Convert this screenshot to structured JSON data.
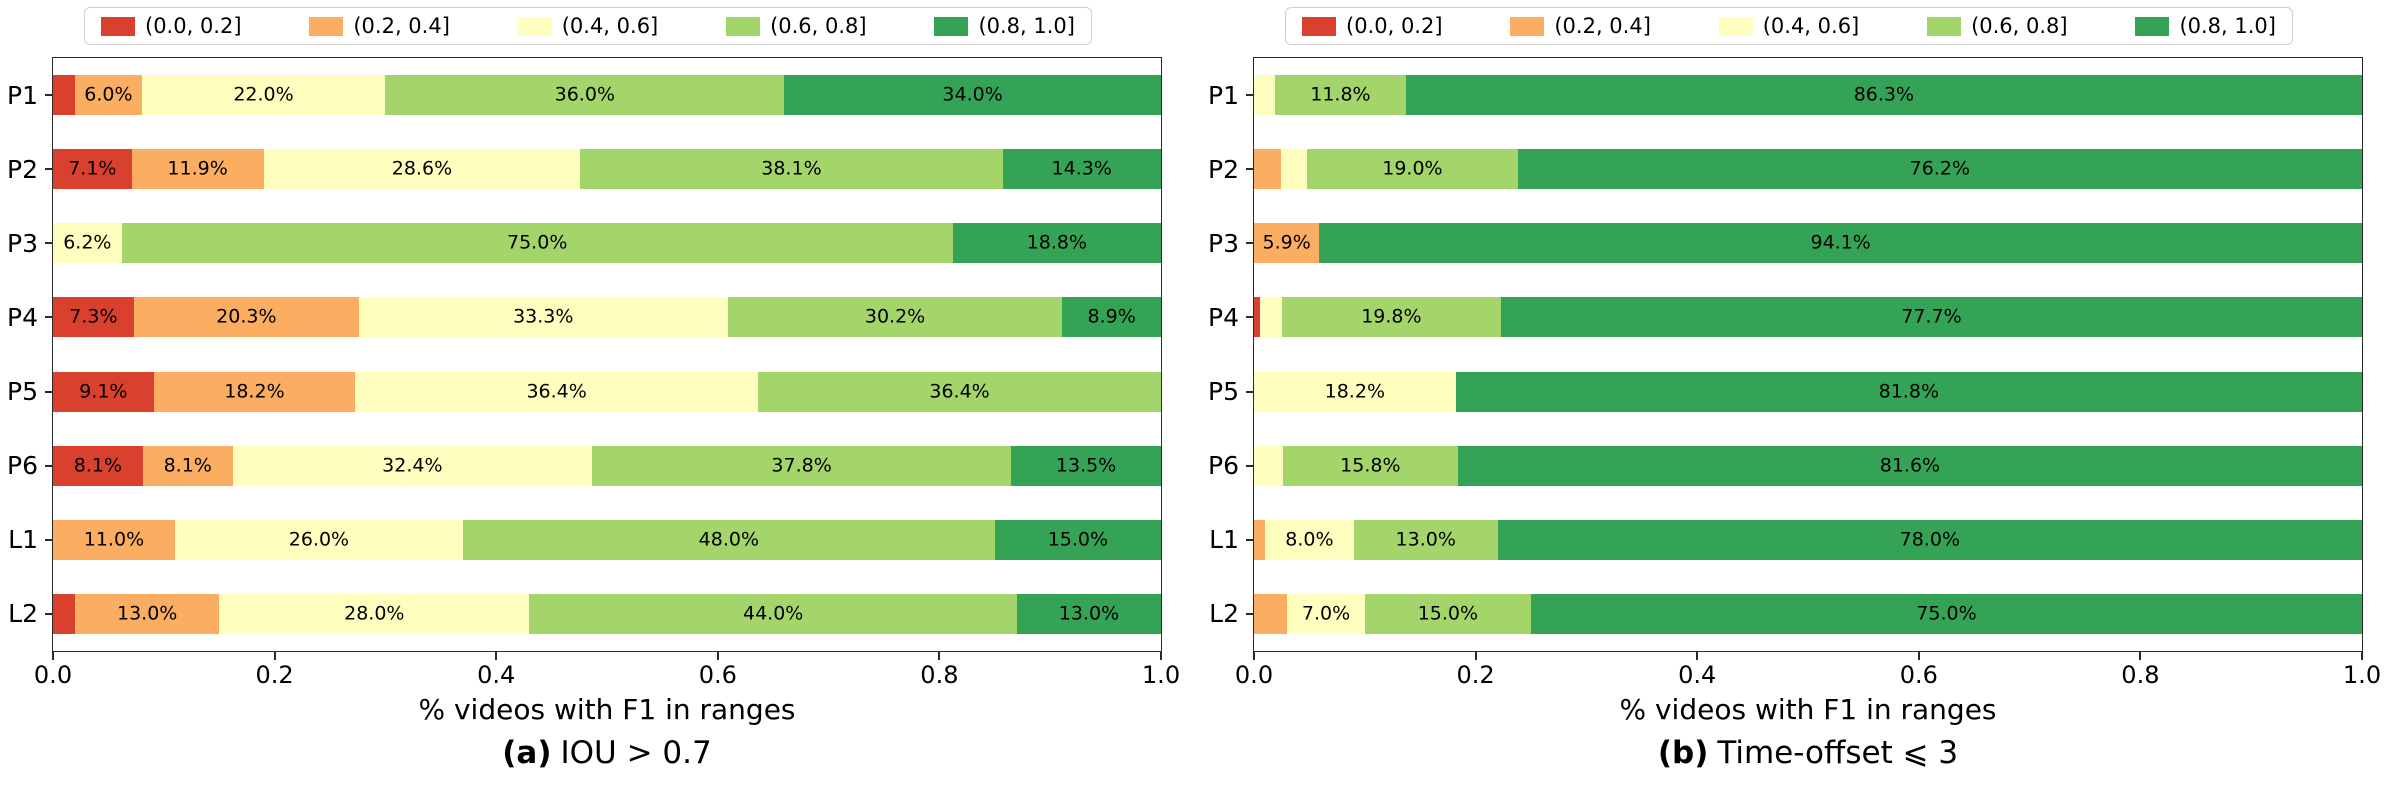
{
  "palette": {
    "range_0_02": "#d9402e",
    "range_02_04": "#fbad62",
    "range_04_06": "#feffbe",
    "range_06_08": "#a4d56a",
    "range_08_10": "#35a355",
    "spine": "#2a2a2a",
    "legend_border": "#cfcfcf",
    "text": "#000000"
  },
  "legend": {
    "entries": [
      {
        "label": "(0.0, 0.2]",
        "color": "#d9402e"
      },
      {
        "label": "(0.2, 0.4]",
        "color": "#fbad62"
      },
      {
        "label": "(0.4, 0.6]",
        "color": "#feffbe"
      },
      {
        "label": "(0.6, 0.8]",
        "color": "#a4d56a"
      },
      {
        "label": "(0.8, 1.0]",
        "color": "#35a355"
      }
    ]
  },
  "chart_data": [
    {
      "type": "bar",
      "stacked": true,
      "orientation": "horizontal",
      "caption_bold": "(a)",
      "caption_text": "IOU > 0.7",
      "xlabel": "% videos with F1 in ranges",
      "xlim": [
        0.0,
        1.0
      ],
      "xtick_labels": [
        "0.0",
        "0.2",
        "0.4",
        "0.6",
        "0.8",
        "1.0"
      ],
      "label_min_percent": 5.0,
      "grid": false,
      "legend_position": "top",
      "categories": [
        "P1",
        "P2",
        "P3",
        "P4",
        "P5",
        "P6",
        "L1",
        "L2"
      ],
      "series": [
        {
          "name": "(0.0, 0.2]",
          "color": "#d9402e",
          "values": [
            2.0,
            7.1,
            0,
            7.3,
            9.1,
            8.1,
            0,
            2.0
          ]
        },
        {
          "name": "(0.2, 0.4]",
          "color": "#fbad62",
          "values": [
            6.0,
            11.9,
            0,
            20.3,
            18.2,
            8.1,
            11.0,
            13.0
          ]
        },
        {
          "name": "(0.4, 0.6]",
          "color": "#feffbe",
          "values": [
            22.0,
            28.6,
            6.2,
            33.3,
            36.4,
            32.4,
            26.0,
            28.0
          ]
        },
        {
          "name": "(0.6, 0.8]",
          "color": "#a4d56a",
          "values": [
            36.0,
            38.1,
            75.0,
            30.2,
            36.4,
            37.8,
            48.0,
            44.0
          ]
        },
        {
          "name": "(0.8, 1.0]",
          "color": "#35a355",
          "values": [
            34.0,
            14.3,
            18.8,
            8.9,
            0,
            13.5,
            15.0,
            13.0
          ]
        }
      ]
    },
    {
      "type": "bar",
      "stacked": true,
      "orientation": "horizontal",
      "caption_bold": "(b)",
      "caption_text": "Time-offset ⩽  3",
      "xlabel": "% videos with F1 in ranges",
      "xlim": [
        0.0,
        1.0
      ],
      "xtick_labels": [
        "0.0",
        "0.2",
        "0.4",
        "0.6",
        "0.8",
        "1.0"
      ],
      "label_min_percent": 5.0,
      "grid": false,
      "legend_position": "top",
      "categories": [
        "P1",
        "P2",
        "P3",
        "P4",
        "P5",
        "P6",
        "L1",
        "L2"
      ],
      "series": [
        {
          "name": "(0.0, 0.2]",
          "color": "#d9402e",
          "values": [
            0,
            0,
            0,
            0.5,
            0,
            0,
            0,
            0
          ]
        },
        {
          "name": "(0.2, 0.4]",
          "color": "#fbad62",
          "values": [
            0,
            2.4,
            5.9,
            0,
            0,
            0,
            1.0,
            3.0
          ]
        },
        {
          "name": "(0.4, 0.6]",
          "color": "#feffbe",
          "values": [
            1.9,
            2.4,
            0,
            2.0,
            18.2,
            2.6,
            8.0,
            7.0
          ]
        },
        {
          "name": "(0.6, 0.8]",
          "color": "#a4d56a",
          "values": [
            11.8,
            19.0,
            0,
            19.8,
            0,
            15.8,
            13.0,
            15.0
          ]
        },
        {
          "name": "(0.8, 1.0]",
          "color": "#35a355",
          "values": [
            86.3,
            76.2,
            94.1,
            77.7,
            81.8,
            81.6,
            78.0,
            75.0
          ]
        }
      ]
    }
  ]
}
